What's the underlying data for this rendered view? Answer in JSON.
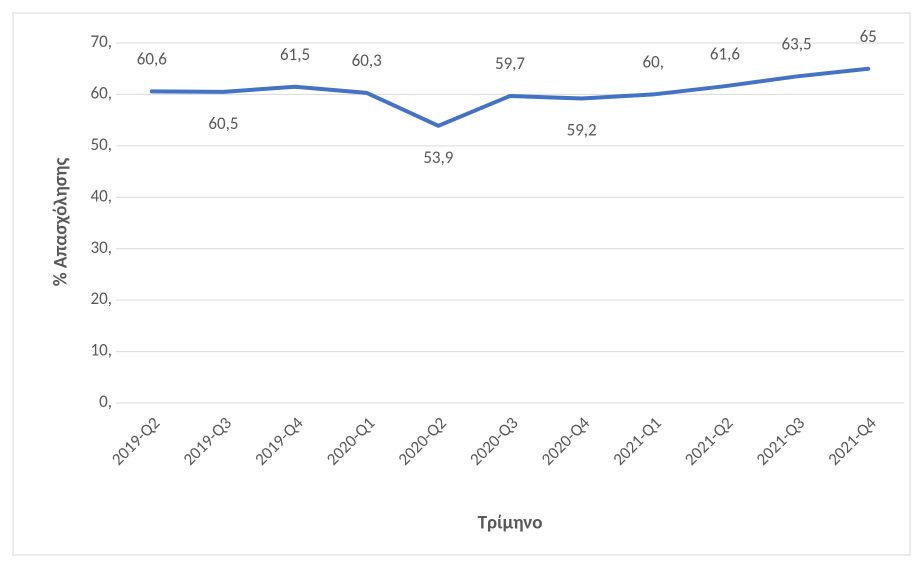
{
  "chart_data": {
    "type": "line",
    "x_label": "Τρίμηνο",
    "y_label": "% Απασχόλησης",
    "categories": [
      "2019-Q2",
      "2019-Q3",
      "2019-Q4",
      "2020-Q1",
      "2020-Q2",
      "2020-Q3",
      "2020-Q4",
      "2021-Q1",
      "2021-Q2",
      "2021-Q3",
      "2021-Q4"
    ],
    "series": [
      {
        "name": "% Απασχόλησης",
        "color": "#4472c4",
        "values": [
          60.6,
          60.5,
          61.5,
          60.3,
          53.9,
          59.7,
          59.2,
          60,
          61.6,
          63.5,
          65
        ],
        "value_labels": [
          "60,6",
          "60,5",
          "61,5",
          "60,3",
          "53,9",
          "59,7",
          "59,2",
          "60,",
          "61,6",
          "63,5",
          "65"
        ]
      }
    ],
    "ylim": [
      0,
      70
    ],
    "yticks": [
      {
        "value": 0,
        "label": "0,"
      },
      {
        "value": 10,
        "label": "10,"
      },
      {
        "value": 20,
        "label": "20,"
      },
      {
        "value": 30,
        "label": "30,"
      },
      {
        "value": 40,
        "label": "40,"
      },
      {
        "value": 50,
        "label": "50,"
      },
      {
        "value": 60,
        "label": "60,"
      },
      {
        "value": 70,
        "label": "70,"
      }
    ],
    "grid": true
  }
}
